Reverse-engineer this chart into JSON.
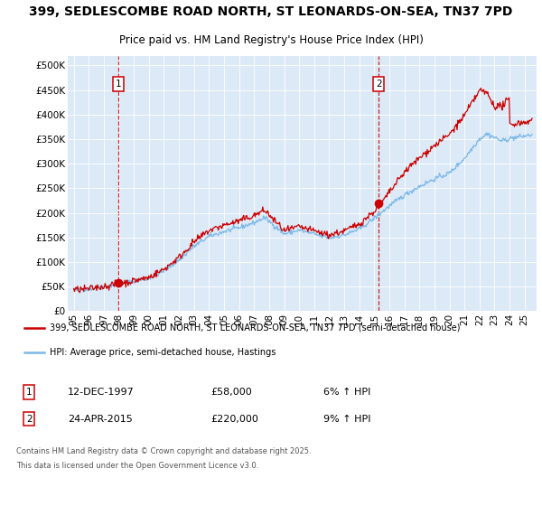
{
  "title_line1": "399, SEDLESCOMBE ROAD NORTH, ST LEONARDS-ON-SEA, TN37 7PD",
  "title_line2": "Price paid vs. HM Land Registry's House Price Index (HPI)",
  "plot_bg_color": "#dce9f7",
  "hpi_color": "#7ab8e8",
  "price_color": "#cc0000",
  "legend_label_red": "399, SEDLESCOMBE ROAD NORTH, ST LEONARDS-ON-SEA, TN37 7PD (semi-detached house)",
  "legend_label_blue": "HPI: Average price, semi-detached house, Hastings",
  "sale1_date": "12-DEC-1997",
  "sale1_price": 58000,
  "sale1_pct": "6% ↑ HPI",
  "sale2_date": "24-APR-2015",
  "sale2_price": 220000,
  "sale2_pct": "9% ↑ HPI",
  "footnote_line1": "Contains HM Land Registry data © Crown copyright and database right 2025.",
  "footnote_line2": "This data is licensed under the Open Government Licence v3.0.",
  "ylim_max": 520000,
  "yticks": [
    0,
    50000,
    100000,
    150000,
    200000,
    250000,
    300000,
    350000,
    400000,
    450000,
    500000
  ],
  "ytick_labels": [
    "£0",
    "£50K",
    "£100K",
    "£150K",
    "£200K",
    "£250K",
    "£300K",
    "£350K",
    "£400K",
    "£450K",
    "£500K"
  ],
  "xstart": 1995,
  "xend": 2025,
  "sale1_year": 1997.96,
  "sale2_year": 2015.29
}
